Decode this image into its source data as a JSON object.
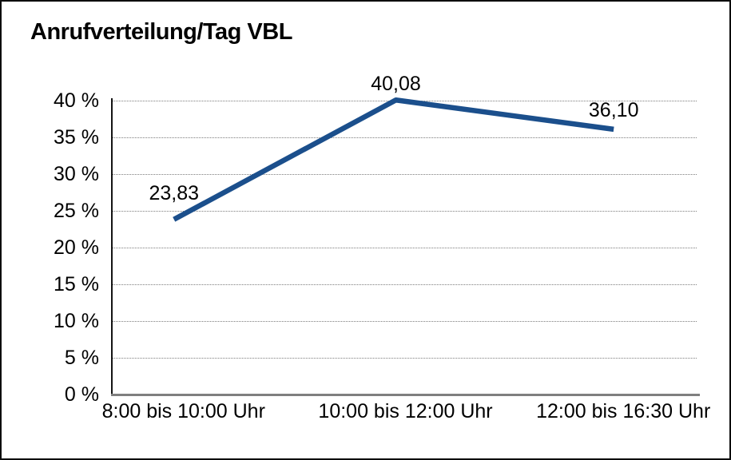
{
  "title": "Anrufverteilung/Tag VBL",
  "chart_data": {
    "type": "line",
    "title": "Anrufverteilung/Tag VBL",
    "categories": [
      "8:00 bis 10:00 Uhr",
      "10:00 bis 12:00 Uhr",
      "12:00 bis 16:30 Uhr"
    ],
    "values": [
      23.83,
      40.08,
      36.1
    ],
    "data_labels": [
      "23,83",
      "40,08",
      "36,10"
    ],
    "y_ticks": [
      {
        "value": 0,
        "label": "0 %"
      },
      {
        "value": 5,
        "label": "5 %"
      },
      {
        "value": 10,
        "label": "10 %"
      },
      {
        "value": 15,
        "label": "15 %"
      },
      {
        "value": 20,
        "label": "20 %"
      },
      {
        "value": 25,
        "label": "25 %"
      },
      {
        "value": 30,
        "label": "30 %"
      },
      {
        "value": 35,
        "label": "35 %"
      },
      {
        "value": 40,
        "label": "40 %"
      }
    ],
    "ylim": [
      0,
      40
    ],
    "xlabel": "",
    "ylabel": "",
    "grid": "horizontal-dotted",
    "legend": "none",
    "markers": "none",
    "colors": {
      "line": "#1b4f8c",
      "grid": "#7d7d7d",
      "axis_left": "#141414",
      "axis_bottom": "#7f7f7f",
      "frame_border": "#0d0d0d",
      "text": "#000000",
      "background": "#ffffff"
    }
  }
}
